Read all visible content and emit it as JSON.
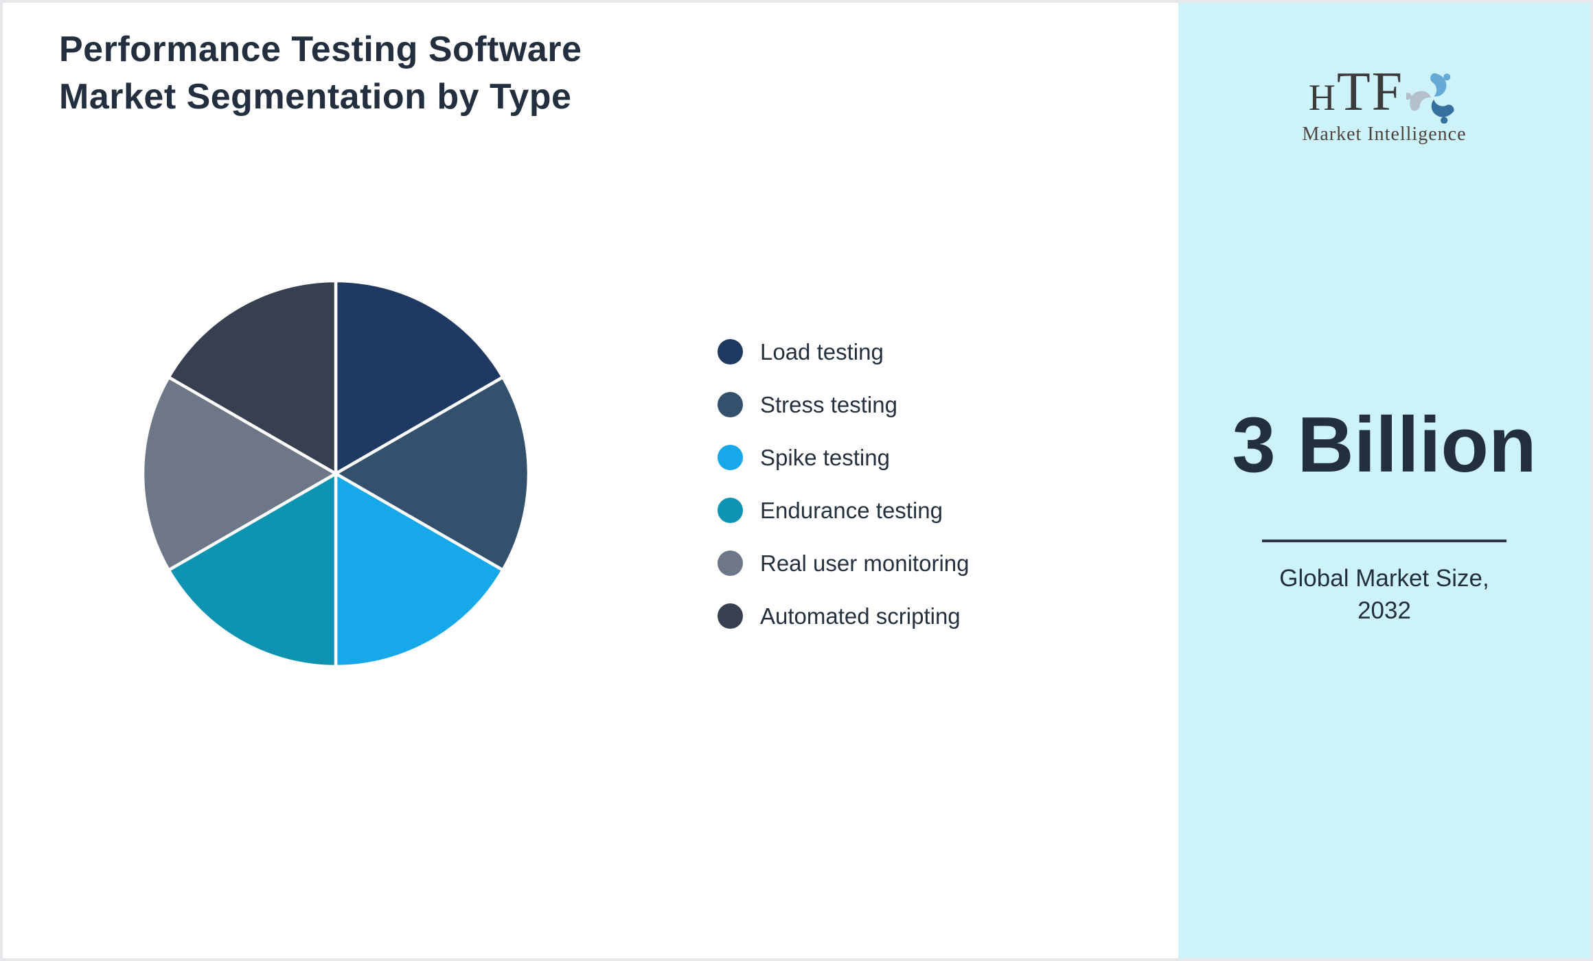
{
  "title": {
    "line1": "Performance Testing Software",
    "line2": "Market Segmentation by Type"
  },
  "chart_data": {
    "type": "pie",
    "title": "Performance Testing Software Market Segmentation by Type",
    "categories": [
      "Load testing",
      "Stress testing",
      "Spike testing",
      "Endurance testing",
      "Real user monitoring",
      "Automated scripting"
    ],
    "values": [
      16.67,
      16.67,
      16.67,
      16.67,
      16.67,
      16.67
    ],
    "colors": [
      "#1e3a62",
      "#33506c",
      "#16a8e9",
      "#0e93b0",
      "#6e7787",
      "#373f50"
    ],
    "slice_border_color": "#ffffff",
    "start_angle": "12 o'clock, clockwise",
    "legend_position": "right of pie",
    "data_labels_shown": false
  },
  "sidebar": {
    "logo_text": "HTF",
    "logo_subtext": "Market Intelligence",
    "market_size_value": "3 Billion",
    "caption_line1": "Global Market Size,",
    "caption_line2": "2032",
    "background_color": "#cef2fa",
    "text_color": "#222f3e"
  }
}
